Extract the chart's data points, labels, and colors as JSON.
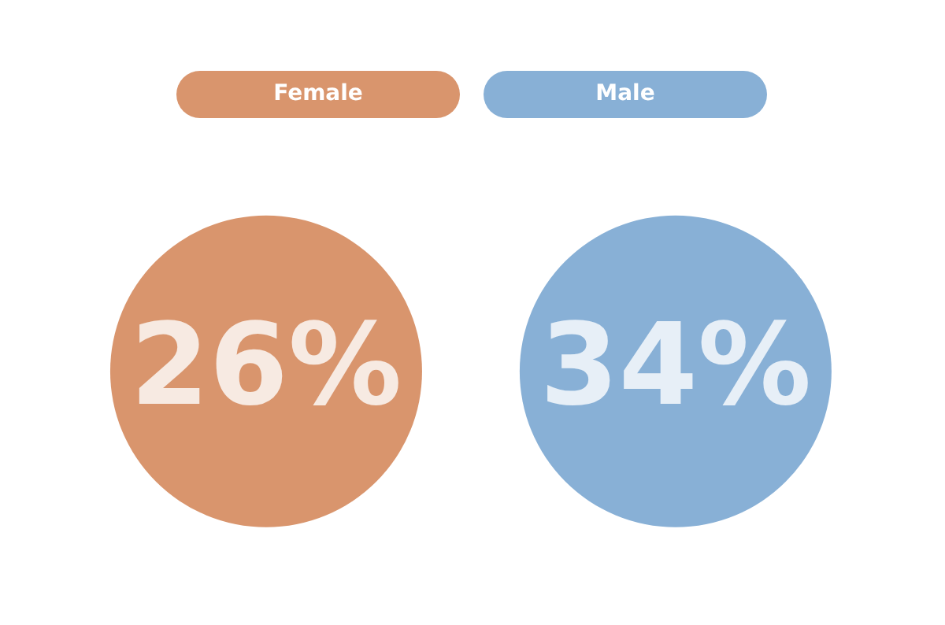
{
  "chart_data": {
    "type": "other",
    "categories": [
      "Female",
      "Male"
    ],
    "values": [
      26,
      34
    ],
    "colors": [
      "#d9956d",
      "#88b0d6"
    ],
    "value_labels": [
      "26%",
      "34%"
    ]
  }
}
